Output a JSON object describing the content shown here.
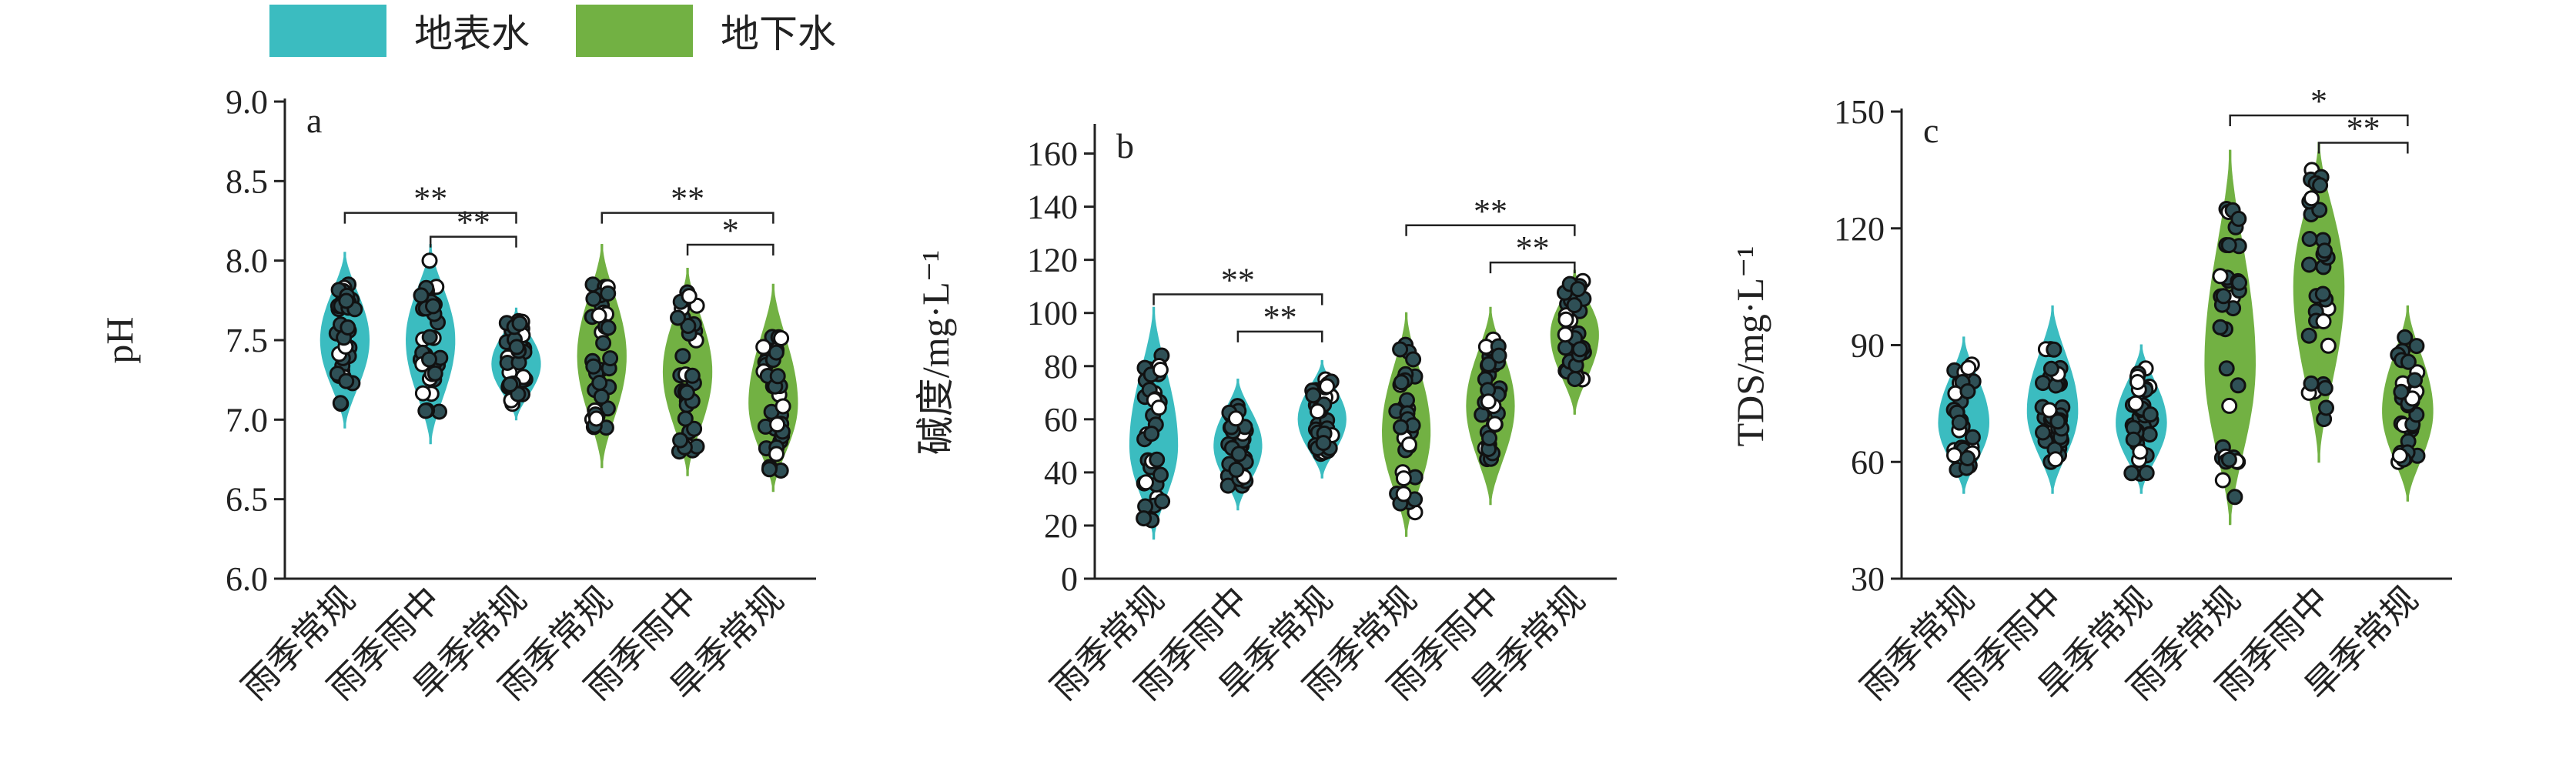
{
  "legend": {
    "items": [
      {
        "label": "地表水",
        "color": "#3bbcc0"
      },
      {
        "label": "地下水",
        "color": "#72b143"
      }
    ]
  },
  "colors": {
    "surface": "#3bbcc0",
    "ground": "#72b143",
    "point_fill": "#2f5056",
    "point_fill_light": "#ffffff"
  },
  "chart_data": [
    {
      "type": "violin",
      "panel_label": "a",
      "categories": [
        "雨季常规",
        "雨季雨中",
        "旱季常规",
        "雨季常规",
        "雨季雨中",
        "旱季常规"
      ],
      "groups": [
        "地表水",
        "地表水",
        "地表水",
        "地下水",
        "地下水",
        "地下水"
      ],
      "ylabel": "pH",
      "ylim": [
        6.0,
        9.0
      ],
      "yticks": [
        6.0,
        6.5,
        7.0,
        7.5,
        8.0,
        8.5,
        9.0
      ],
      "ytick_labels": [
        "6.0",
        "6.5",
        "7.0",
        "7.5",
        "8.0",
        "8.5",
        "9.0"
      ],
      "series": [
        {
          "name": "地表水",
          "category": "雨季常规",
          "min": 7.1,
          "max": 7.85,
          "center": 7.5,
          "vmin": 6.95,
          "vmax": 8.05
        },
        {
          "name": "地表水",
          "category": "雨季雨中",
          "min": 7.05,
          "max": 8.0,
          "center": 7.5,
          "vmin": 6.85,
          "vmax": 8.1
        },
        {
          "name": "地表水",
          "category": "旱季常规",
          "min": 7.1,
          "max": 7.62,
          "center": 7.35,
          "vmin": 7.0,
          "vmax": 7.7
        },
        {
          "name": "地下水",
          "category": "雨季常规",
          "min": 6.95,
          "max": 7.85,
          "center": 7.4,
          "vmin": 6.7,
          "vmax": 8.1
        },
        {
          "name": "地下水",
          "category": "雨季雨中",
          "min": 6.8,
          "max": 7.8,
          "center": 7.3,
          "vmin": 6.65,
          "vmax": 7.95
        },
        {
          "name": "地下水",
          "category": "旱季常规",
          "min": 6.68,
          "max": 7.52,
          "center": 7.1,
          "vmin": 6.55,
          "vmax": 7.85
        }
      ],
      "annotations": [
        {
          "from": 1,
          "to": 3,
          "label": "**",
          "y": 8.3
        },
        {
          "from": 2,
          "to": 3,
          "label": "**",
          "y": 8.15
        },
        {
          "from": 4,
          "to": 6,
          "label": "**",
          "y": 8.3
        },
        {
          "from": 5,
          "to": 6,
          "label": "*",
          "y": 8.1
        }
      ]
    },
    {
      "type": "violin",
      "panel_label": "b",
      "categories": [
        "雨季常规",
        "雨季雨中",
        "旱季常规",
        "雨季常规",
        "雨季雨中",
        "旱季常规"
      ],
      "groups": [
        "地表水",
        "地表水",
        "地表水",
        "地下水",
        "地下水",
        "地下水"
      ],
      "ylabel": "碱度/mg·L⁻¹",
      "ylim": [
        0,
        170
      ],
      "yticks": [
        0,
        20,
        40,
        60,
        80,
        100,
        120,
        140,
        160
      ],
      "ytick_labels": [
        "0",
        "20",
        "40",
        "60",
        "80",
        "100",
        "120",
        "140",
        "160"
      ],
      "series": [
        {
          "name": "地表水",
          "category": "雨季常规",
          "min": 22,
          "max": 84,
          "center": 50,
          "vmin": 15,
          "vmax": 102
        },
        {
          "name": "地表水",
          "category": "雨季雨中",
          "min": 35,
          "max": 65,
          "center": 50,
          "vmin": 26,
          "vmax": 75
        },
        {
          "name": "地表水",
          "category": "旱季常规",
          "min": 47,
          "max": 75,
          "center": 60,
          "vmin": 38,
          "vmax": 82
        },
        {
          "name": "地下水",
          "category": "雨季常规",
          "min": 25,
          "max": 88,
          "center": 55,
          "vmin": 16,
          "vmax": 100
        },
        {
          "name": "地下水",
          "category": "雨季雨中",
          "min": 45,
          "max": 90,
          "center": 65,
          "vmin": 28,
          "vmax": 102
        },
        {
          "name": "地下水",
          "category": "旱季常规",
          "min": 75,
          "max": 112,
          "center": 92,
          "vmin": 62,
          "vmax": 116
        }
      ],
      "annotations": [
        {
          "from": 1,
          "to": 3,
          "label": "**",
          "y": 107
        },
        {
          "from": 2,
          "to": 3,
          "label": "**",
          "y": 93
        },
        {
          "from": 4,
          "to": 6,
          "label": "**",
          "y": 133
        },
        {
          "from": 5,
          "to": 6,
          "label": "**",
          "y": 119
        }
      ]
    },
    {
      "type": "violin",
      "panel_label": "c",
      "categories": [
        "雨季常规",
        "雨季雨中",
        "旱季常规",
        "雨季常规",
        "雨季雨中",
        "旱季常规"
      ],
      "groups": [
        "地表水",
        "地表水",
        "地表水",
        "地下水",
        "地下水",
        "地下水"
      ],
      "ylabel": "TDS/mg·L⁻¹",
      "ylim": [
        30,
        150
      ],
      "yticks": [
        30,
        60,
        90,
        120,
        150
      ],
      "ytick_labels": [
        "30",
        "60",
        "90",
        "120",
        "150"
      ],
      "series": [
        {
          "name": "地表水",
          "category": "雨季常规",
          "min": 58,
          "max": 85,
          "center": 70,
          "vmin": 52,
          "vmax": 92
        },
        {
          "name": "地表水",
          "category": "雨季雨中",
          "min": 60,
          "max": 89,
          "center": 73,
          "vmin": 52,
          "vmax": 100
        },
        {
          "name": "地表水",
          "category": "旱季常规",
          "min": 57,
          "max": 84,
          "center": 70,
          "vmin": 52,
          "vmax": 90
        },
        {
          "name": "地下水",
          "category": "雨季常规",
          "min": 51,
          "max": 125,
          "center": 85,
          "vmin": 44,
          "vmax": 140
        },
        {
          "name": "地下水",
          "category": "雨季雨中",
          "min": 71,
          "max": 135,
          "center": 105,
          "vmin": 60,
          "vmax": 142
        },
        {
          "name": "地下水",
          "category": "旱季常规",
          "min": 60,
          "max": 92,
          "center": 73,
          "vmin": 50,
          "vmax": 100
        }
      ],
      "annotations": [
        {
          "from": 4,
          "to": 6,
          "label": "*",
          "y": 149
        },
        {
          "from": 5,
          "to": 6,
          "label": "**",
          "y": 142
        }
      ]
    }
  ]
}
